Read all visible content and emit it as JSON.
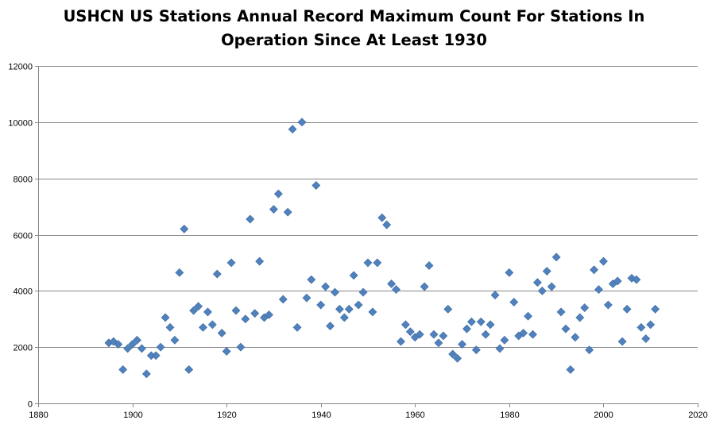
{
  "title": {
    "line1": "USHCN US Stations Annual Record Maximum Count For Stations In",
    "line2": "Operation Since At Least 1930"
  },
  "colors": {
    "marker": "#4f81bd",
    "marker_stroke": "#3e6aa0",
    "gridline": "#868686",
    "axis": "#868686"
  },
  "chart_data": {
    "type": "scatter",
    "title": "USHCN US Stations Annual Record Maximum Count For Stations In Operation Since At Least 1930",
    "xlabel": "",
    "ylabel": "",
    "xlim": [
      1880,
      2020
    ],
    "ylim": [
      0,
      12000
    ],
    "x_ticks": [
      1880,
      1900,
      1920,
      1940,
      1960,
      1980,
      2000,
      2020
    ],
    "y_ticks": [
      0,
      2000,
      4000,
      6000,
      8000,
      10000,
      12000
    ],
    "grid": "horizontal",
    "legend": "none",
    "marker": "diamond",
    "series": [
      {
        "points": [
          [
            1895,
            2150
          ],
          [
            1896,
            2200
          ],
          [
            1897,
            2100
          ],
          [
            1898,
            1200
          ],
          [
            1899,
            1950
          ],
          [
            1900,
            2100
          ],
          [
            1901,
            2250
          ],
          [
            1902,
            1950
          ],
          [
            1903,
            1050
          ],
          [
            1904,
            1700
          ],
          [
            1905,
            1700
          ],
          [
            1906,
            2000
          ],
          [
            1907,
            3050
          ],
          [
            1908,
            2700
          ],
          [
            1909,
            2250
          ],
          [
            1910,
            4650
          ],
          [
            1911,
            6200
          ],
          [
            1912,
            1200
          ],
          [
            1913,
            3300
          ],
          [
            1914,
            3450
          ],
          [
            1915,
            2700
          ],
          [
            1916,
            3250
          ],
          [
            1917,
            2800
          ],
          [
            1918,
            4600
          ],
          [
            1919,
            2500
          ],
          [
            1920,
            1850
          ],
          [
            1921,
            5000
          ],
          [
            1922,
            3300
          ],
          [
            1923,
            2000
          ],
          [
            1924,
            3000
          ],
          [
            1925,
            6550
          ],
          [
            1926,
            3200
          ],
          [
            1927,
            5050
          ],
          [
            1928,
            3050
          ],
          [
            1929,
            3150
          ],
          [
            1930,
            6900
          ],
          [
            1931,
            7450
          ],
          [
            1932,
            3700
          ],
          [
            1933,
            6800
          ],
          [
            1934,
            9750
          ],
          [
            1935,
            2700
          ],
          [
            1936,
            10000
          ],
          [
            1937,
            3750
          ],
          [
            1938,
            4400
          ],
          [
            1939,
            7750
          ],
          [
            1940,
            3500
          ],
          [
            1941,
            4150
          ],
          [
            1942,
            2750
          ],
          [
            1943,
            3950
          ],
          [
            1944,
            3350
          ],
          [
            1945,
            3050
          ],
          [
            1946,
            3350
          ],
          [
            1947,
            4550
          ],
          [
            1948,
            3500
          ],
          [
            1949,
            3950
          ],
          [
            1950,
            5000
          ],
          [
            1951,
            3250
          ],
          [
            1952,
            5000
          ],
          [
            1953,
            6600
          ],
          [
            1954,
            6350
          ],
          [
            1955,
            4250
          ],
          [
            1956,
            4050
          ],
          [
            1957,
            2200
          ],
          [
            1958,
            2800
          ],
          [
            1959,
            2550
          ],
          [
            1960,
            2350
          ],
          [
            1961,
            2450
          ],
          [
            1962,
            4150
          ],
          [
            1963,
            4900
          ],
          [
            1964,
            2450
          ],
          [
            1965,
            2150
          ],
          [
            1966,
            2400
          ],
          [
            1967,
            3350
          ],
          [
            1968,
            1750
          ],
          [
            1969,
            1600
          ],
          [
            1970,
            2100
          ],
          [
            1971,
            2650
          ],
          [
            1972,
            2900
          ],
          [
            1973,
            1900
          ],
          [
            1974,
            2900
          ],
          [
            1975,
            2450
          ],
          [
            1976,
            2800
          ],
          [
            1977,
            3850
          ],
          [
            1978,
            1950
          ],
          [
            1979,
            2250
          ],
          [
            1980,
            4650
          ],
          [
            1981,
            3600
          ],
          [
            1982,
            2400
          ],
          [
            1983,
            2500
          ],
          [
            1984,
            3100
          ],
          [
            1985,
            2450
          ],
          [
            1986,
            4300
          ],
          [
            1987,
            4000
          ],
          [
            1988,
            4700
          ],
          [
            1989,
            4150
          ],
          [
            1990,
            5200
          ],
          [
            1991,
            3250
          ],
          [
            1992,
            2650
          ],
          [
            1993,
            1200
          ],
          [
            1994,
            2350
          ],
          [
            1995,
            3050
          ],
          [
            1996,
            3400
          ],
          [
            1997,
            1900
          ],
          [
            1998,
            4750
          ],
          [
            1999,
            4050
          ],
          [
            2000,
            5050
          ],
          [
            2001,
            3500
          ],
          [
            2002,
            4250
          ],
          [
            2003,
            4350
          ],
          [
            2004,
            2200
          ],
          [
            2005,
            3350
          ],
          [
            2006,
            4450
          ],
          [
            2007,
            4400
          ],
          [
            2008,
            2700
          ],
          [
            2009,
            2300
          ],
          [
            2010,
            2800
          ],
          [
            2011,
            3350
          ]
        ]
      }
    ]
  }
}
